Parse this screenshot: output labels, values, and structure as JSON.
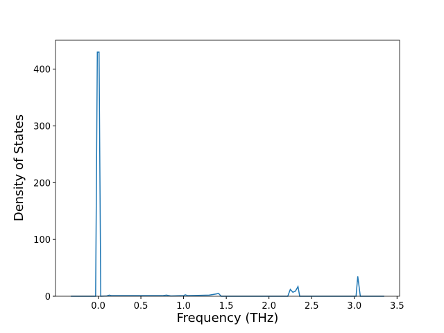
{
  "chart_data": {
    "type": "line",
    "x_label": "Frequency (THz)",
    "y_label": "Density of States",
    "x": [
      -0.32,
      -0.03,
      -0.01,
      0.01,
      0.03,
      0.1,
      0.13,
      0.16,
      0.5,
      0.75,
      0.8,
      0.85,
      1.0,
      1.02,
      1.05,
      1.3,
      1.38,
      1.41,
      1.44,
      2.22,
      2.25,
      2.28,
      2.31,
      2.34,
      2.36,
      3.02,
      3.04,
      3.07,
      3.35
    ],
    "series": [
      {
        "color": "#1f77b4",
        "values": [
          0,
          0,
          430,
          430,
          0,
          0.5,
          2,
          1,
          1,
          1,
          2,
          0.5,
          1,
          2.5,
          1,
          2,
          4,
          5,
          0,
          0,
          12,
          7,
          9,
          17,
          0,
          0,
          35,
          0,
          0
        ]
      }
    ],
    "xlim": [
      -0.5,
      3.53
    ],
    "ylim": [
      0,
      451
    ],
    "xticks": [
      {
        "value": 0,
        "label": "0.0"
      },
      0.5,
      {
        "value": 1,
        "label": "1.0"
      },
      1.5,
      {
        "value": 2,
        "label": "2.0"
      },
      2.5,
      {
        "value": 3,
        "label": "3.0"
      },
      3.5
    ],
    "yticks": [
      0,
      100,
      200,
      300,
      400
    ]
  }
}
